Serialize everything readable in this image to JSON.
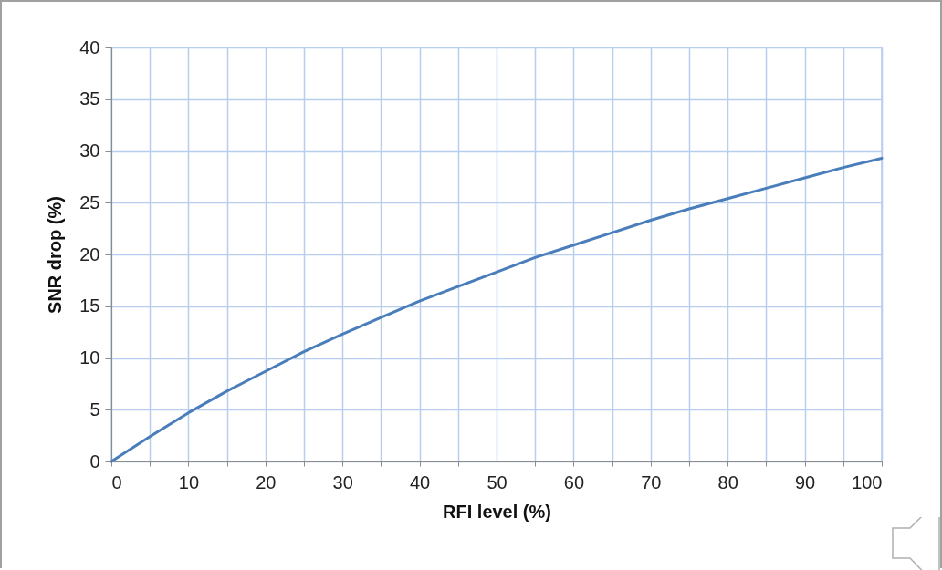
{
  "chart_data": {
    "type": "line",
    "xlabel": "RFI level (%)",
    "ylabel": "SNR drop (%)",
    "x": [
      0,
      5,
      10,
      15,
      20,
      25,
      30,
      35,
      40,
      45,
      50,
      55,
      60,
      65,
      70,
      75,
      80,
      85,
      90,
      95,
      100
    ],
    "series": [
      {
        "color": "#4a7ebb",
        "values": [
          0,
          2.4,
          4.7,
          6.8,
          8.7,
          10.6,
          12.3,
          13.9,
          15.5,
          16.9,
          18.3,
          19.7,
          20.9,
          22.1,
          23.3,
          24.4,
          25.4,
          26.4,
          27.4,
          28.4,
          29.3
        ]
      }
    ],
    "xlim": [
      0,
      100
    ],
    "ylim": [
      0,
      40
    ],
    "xticks": [
      0,
      {
        "value": 5,
        "label": null
      },
      10,
      {
        "value": 15,
        "label": null
      },
      20,
      {
        "value": 25,
        "label": null
      },
      30,
      {
        "value": 35,
        "label": null
      },
      40,
      {
        "value": 45,
        "label": null
      },
      50,
      {
        "value": 55,
        "label": null
      },
      60,
      {
        "value": 65,
        "label": null
      },
      70,
      {
        "value": 75,
        "label": null
      },
      80,
      {
        "value": 85,
        "label": null
      },
      90,
      {
        "value": 95,
        "label": null
      },
      100
    ],
    "yticks": [
      0,
      5,
      10,
      15,
      20,
      25,
      30,
      35,
      40
    ],
    "grid": true,
    "marker": "none",
    "line_style": "solid"
  }
}
